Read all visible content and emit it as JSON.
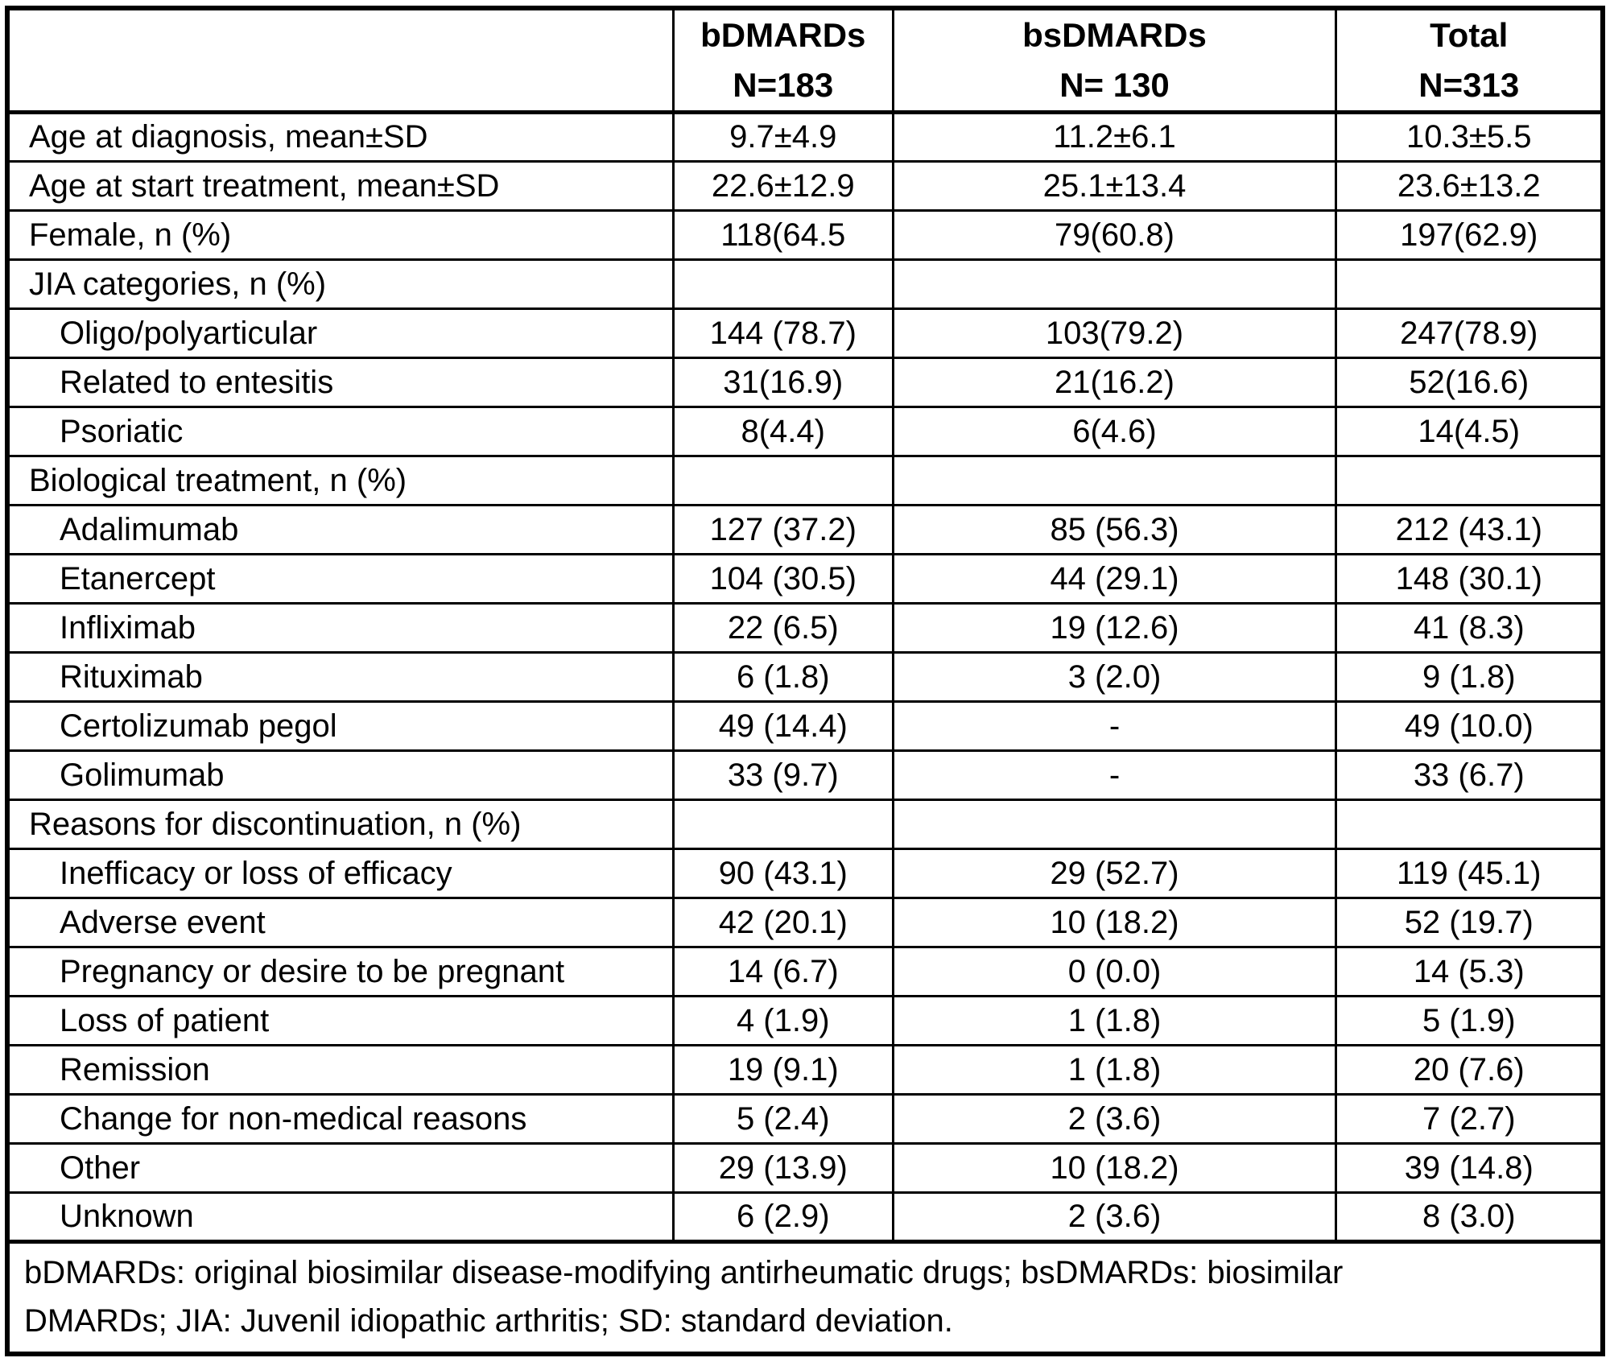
{
  "colors": {
    "border": "#000000",
    "background": "#ffffff",
    "text": "#000000"
  },
  "table": {
    "header": {
      "row_label_column": "",
      "columns": [
        {
          "label": "bDMARDs",
          "n": "N=183"
        },
        {
          "label": "bsDMARDs",
          "n": "N= 130"
        },
        {
          "label": "Total",
          "n": "N=313"
        }
      ]
    },
    "rows": [
      {
        "label": "Age at diagnosis, mean±SD",
        "indent": false,
        "cells": [
          "9.7±4.9",
          "11.2±6.1",
          "10.3±5.5"
        ]
      },
      {
        "label": "Age at start treatment, mean±SD",
        "indent": false,
        "cells": [
          "22.6±12.9",
          "25.1±13.4",
          "23.6±13.2"
        ]
      },
      {
        "label": "Female, n (%)",
        "indent": false,
        "cells": [
          "118(64.5",
          "79(60.8)",
          "197(62.9)"
        ]
      },
      {
        "label": "JIA categories, n (%)",
        "indent": false,
        "cells": [
          "",
          "",
          ""
        ]
      },
      {
        "label": "Oligo/polyarticular",
        "indent": true,
        "cells": [
          "144 (78.7)",
          "103(79.2)",
          "247(78.9)"
        ]
      },
      {
        "label": "Related to entesitis",
        "indent": true,
        "cells": [
          "31(16.9)",
          "21(16.2)",
          "52(16.6)"
        ]
      },
      {
        "label": "Psoriatic",
        "indent": true,
        "cells": [
          "8(4.4)",
          "6(4.6)",
          "14(4.5)"
        ]
      },
      {
        "label": "Biological treatment, n (%)",
        "indent": false,
        "cells": [
          "",
          "",
          ""
        ]
      },
      {
        "label": "Adalimumab",
        "indent": true,
        "cells": [
          "127 (37.2)",
          "85 (56.3)",
          "212 (43.1)"
        ]
      },
      {
        "label": "Etanercept",
        "indent": true,
        "cells": [
          "104 (30.5)",
          "44 (29.1)",
          "148 (30.1)"
        ]
      },
      {
        "label": "Infliximab",
        "indent": true,
        "cells": [
          "22 (6.5)",
          "19 (12.6)",
          "41 (8.3)"
        ]
      },
      {
        "label": "Rituximab",
        "indent": true,
        "cells": [
          "6 (1.8)",
          "3 (2.0)",
          "9 (1.8)"
        ]
      },
      {
        "label": "Certolizumab pegol",
        "indent": true,
        "cells": [
          "49 (14.4)",
          "-",
          "49 (10.0)"
        ]
      },
      {
        "label": "Golimumab",
        "indent": true,
        "cells": [
          "33 (9.7)",
          "-",
          "33 (6.7)"
        ]
      },
      {
        "label": "Reasons for discontinuation, n (%)",
        "indent": false,
        "cells": [
          "",
          "",
          ""
        ]
      },
      {
        "label": "Inefficacy or loss of efficacy",
        "indent": true,
        "cells": [
          "90 (43.1)",
          "29 (52.7)",
          "119 (45.1)"
        ]
      },
      {
        "label": "Adverse event",
        "indent": true,
        "cells": [
          "42 (20.1)",
          "10 (18.2)",
          "52 (19.7)"
        ]
      },
      {
        "label": "Pregnancy or desire to be pregnant",
        "indent": true,
        "cells": [
          "14 (6.7)",
          "0 (0.0)",
          "14 (5.3)"
        ]
      },
      {
        "label": "Loss of patient",
        "indent": true,
        "cells": [
          "4 (1.9)",
          "1 (1.8)",
          "5 (1.9)"
        ]
      },
      {
        "label": "Remission",
        "indent": true,
        "cells": [
          "19 (9.1)",
          "1 (1.8)",
          "20 (7.6)"
        ]
      },
      {
        "label": "Change for non-medical reasons",
        "indent": true,
        "cells": [
          "5 (2.4)",
          "2 (3.6)",
          "7 (2.7)"
        ]
      },
      {
        "label": "Other",
        "indent": true,
        "cells": [
          "29 (13.9)",
          "10 (18.2)",
          "39 (14.8)"
        ]
      },
      {
        "label": "Unknown",
        "indent": true,
        "cells": [
          "6 (2.9)",
          "2 (3.6)",
          "8 (3.0)"
        ]
      }
    ],
    "footnote_lines": [
      "bDMARDs: original biosimilar disease-modifying antirheumatic drugs; bsDMARDs: biosimilar",
      "DMARDs; JIA: Juvenil idiopathic arthritis; SD: standard deviation."
    ]
  }
}
